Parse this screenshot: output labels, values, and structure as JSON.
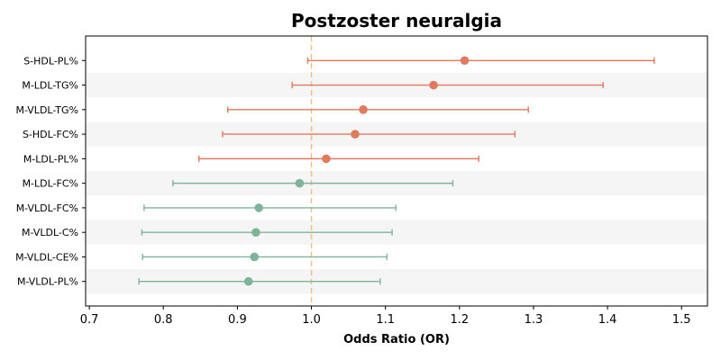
{
  "chart_data": {
    "type": "forest",
    "title": "Postzoster neuralgia",
    "xlabel": "Odds Ratio (OR)",
    "ylabel": "",
    "xlim": [
      0.695,
      1.535
    ],
    "xticks": [
      "0.7",
      "0.8",
      "0.9",
      "1.0",
      "1.1",
      "1.2",
      "1.3",
      "1.4",
      "1.5"
    ],
    "reference_line": 1.0,
    "grid": false,
    "colors": {
      "risk": "#e07b5f",
      "protective": "#7fb39a",
      "reference": "#f0c08a",
      "band": "#f5f5f5"
    },
    "rows": [
      {
        "label": "S-HDL-PL%",
        "or": 1.207,
        "lower": 0.995,
        "upper": 1.463,
        "group": "risk"
      },
      {
        "label": "M-LDL-TG%",
        "or": 1.165,
        "lower": 0.974,
        "upper": 1.394,
        "group": "risk"
      },
      {
        "label": "M-VLDL-TG%",
        "or": 1.07,
        "lower": 0.887,
        "upper": 1.293,
        "group": "risk"
      },
      {
        "label": "S-HDL-FC%",
        "or": 1.059,
        "lower": 0.88,
        "upper": 1.275,
        "group": "risk"
      },
      {
        "label": "M-LDL-PL%",
        "or": 1.02,
        "lower": 0.848,
        "upper": 1.226,
        "group": "risk"
      },
      {
        "label": "M-LDL-FC%",
        "or": 0.984,
        "lower": 0.813,
        "upper": 1.191,
        "group": "protective"
      },
      {
        "label": "M-VLDL-FC%",
        "or": 0.929,
        "lower": 0.774,
        "upper": 1.114,
        "group": "protective"
      },
      {
        "label": "M-VLDL-C%",
        "or": 0.925,
        "lower": 0.771,
        "upper": 1.109,
        "group": "protective"
      },
      {
        "label": "M-VLDL-CE%",
        "or": 0.923,
        "lower": 0.772,
        "upper": 1.102,
        "group": "protective"
      },
      {
        "label": "M-VLDL-PL%",
        "or": 0.915,
        "lower": 0.767,
        "upper": 1.093,
        "group": "protective"
      }
    ]
  }
}
